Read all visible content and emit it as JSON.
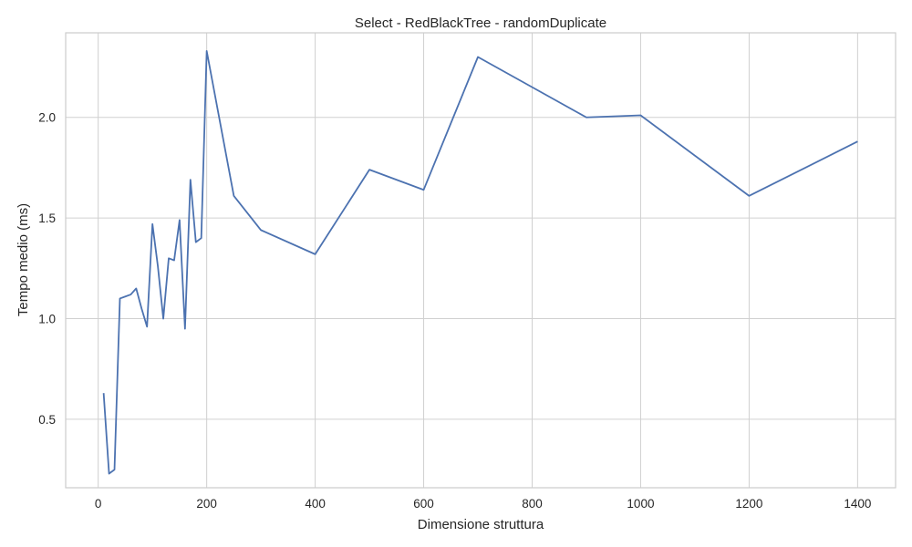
{
  "chart_data": {
    "type": "line",
    "title": "Select - RedBlackTree - randomDuplicate",
    "xlabel": "Dimensione struttura",
    "ylabel": "Tempo medio (ms)",
    "xlim": [
      -60,
      1470
    ],
    "ylim": [
      0.16,
      2.42
    ],
    "xticks": [
      0,
      200,
      400,
      600,
      800,
      1000,
      1200,
      1400
    ],
    "xtick_labels": [
      "0",
      "200",
      "400",
      "600",
      "800",
      "1000",
      "1200",
      "1400"
    ],
    "yticks": [
      0.5,
      1.0,
      1.5,
      2.0
    ],
    "ytick_labels": [
      "0.5",
      "1.0",
      "1.5",
      "2.0"
    ],
    "grid": true,
    "legend": "none",
    "series": [
      {
        "color": "#4c72b0",
        "x": [
          10,
          20,
          30,
          40,
          50,
          60,
          70,
          80,
          90,
          100,
          110,
          120,
          130,
          140,
          150,
          160,
          170,
          180,
          190,
          200,
          250,
          300,
          400,
          500,
          600,
          700,
          800,
          900,
          1000,
          1200,
          1400
        ],
        "y": [
          0.63,
          0.23,
          0.25,
          1.1,
          1.11,
          1.12,
          1.15,
          1.05,
          0.96,
          1.47,
          1.26,
          1.0,
          1.3,
          1.29,
          1.49,
          0.95,
          1.69,
          1.38,
          1.4,
          2.33,
          1.61,
          1.44,
          1.32,
          1.74,
          1.64,
          2.3,
          2.15,
          2.0,
          2.01,
          1.61,
          1.88
        ]
      }
    ]
  }
}
